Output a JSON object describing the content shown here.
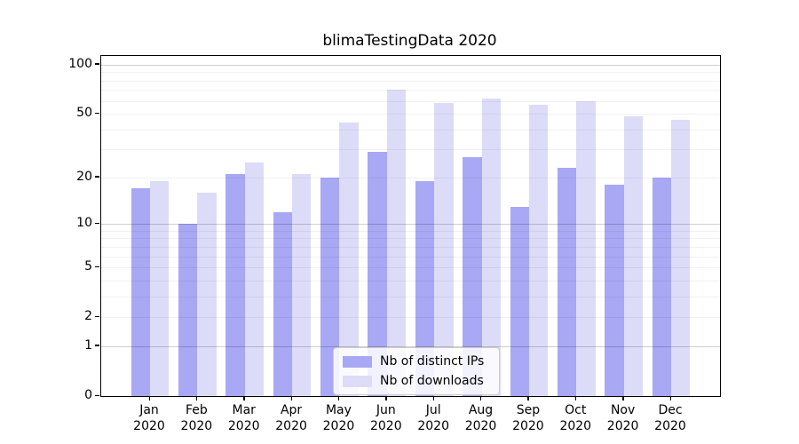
{
  "figure_title": "blimaTestingData 2020",
  "chart_data": {
    "type": "bar",
    "title": "blimaTestingData 2020",
    "xlabel": "",
    "ylabel": "",
    "months": [
      "Jan",
      "Feb",
      "Mar",
      "Apr",
      "May",
      "Jun",
      "Jul",
      "Aug",
      "Sep",
      "Oct",
      "Nov",
      "Dec"
    ],
    "year_label": "2020",
    "categories": [
      "Jan 2020",
      "Feb 2020",
      "Mar 2020",
      "Apr 2020",
      "May 2020",
      "Jun 2020",
      "Jul 2020",
      "Aug 2020",
      "Sep 2020",
      "Oct 2020",
      "Nov 2020",
      "Dec 2020"
    ],
    "series": [
      {
        "name": "Nb of distinct IPs",
        "color": "#a8a8f4",
        "values": [
          17,
          10,
          21,
          12,
          20,
          29,
          19,
          27,
          13,
          23,
          18,
          20
        ]
      },
      {
        "name": "Nb of downloads",
        "color": "#dcdcf8",
        "values": [
          19,
          16,
          25,
          21,
          44,
          70,
          58,
          62,
          57,
          60,
          48,
          46
        ]
      }
    ],
    "yscale": "log1p",
    "ylim": [
      0,
      113
    ],
    "yticks": [
      0,
      1,
      2,
      5,
      10,
      20,
      50,
      100
    ],
    "major_grid_values": [
      1,
      10,
      100
    ],
    "minor_grid_values": [
      2,
      3,
      4,
      5,
      6,
      7,
      8,
      9,
      20,
      30,
      40,
      50,
      60,
      70,
      80,
      90
    ],
    "grid": true,
    "legend_position": "lower center"
  }
}
